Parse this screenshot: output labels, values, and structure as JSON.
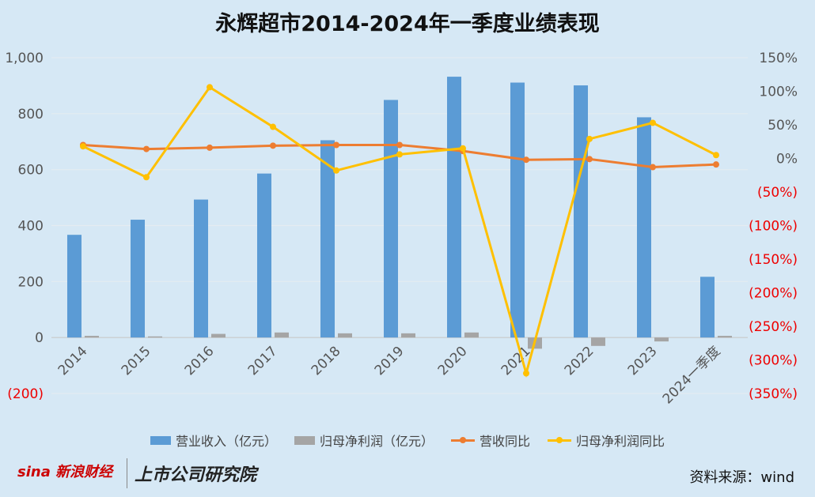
{
  "chart_data": {
    "type": "bar+line",
    "title": "永辉超市2014-2024年一季度业绩表现",
    "categories": [
      "2014",
      "2015",
      "2016",
      "2017",
      "2018",
      "2019",
      "2020",
      "2021",
      "2022",
      "2023",
      "2024一季度"
    ],
    "left_axis": {
      "ylim": [
        -200,
        1000
      ],
      "ticks": [
        "(200)",
        "0",
        "200",
        "400",
        "600",
        "800",
        "1,000"
      ],
      "tick_values": [
        -200,
        0,
        200,
        400,
        600,
        800,
        1000
      ]
    },
    "right_axis": {
      "ylim": [
        -350,
        150
      ],
      "ticks": [
        "150%",
        "100%",
        "50%",
        "0%",
        "(50%)",
        "(100%)",
        "(150%)",
        "(200%)",
        "(250%)",
        "(300%)",
        "(350%)"
      ],
      "tick_values": [
        150,
        100,
        50,
        0,
        -50,
        -100,
        -150,
        -200,
        -250,
        -300,
        -350
      ]
    },
    "series": [
      {
        "name": "营业收入（亿元）",
        "type": "bar",
        "axis": "left",
        "color": "#5b9bd5",
        "values": [
          367,
          421,
          493,
          586,
          705,
          849,
          932,
          911,
          901,
          787,
          217
        ]
      },
      {
        "name": "归母净利润（亿元）",
        "type": "bar",
        "axis": "left",
        "color": "#a5a5a5",
        "values": [
          6,
          4,
          13,
          18,
          15,
          15,
          18,
          -40,
          -30,
          -14,
          6
        ]
      },
      {
        "name": "营收同比",
        "type": "line",
        "axis": "right",
        "color": "#ed7d31",
        "values": [
          20,
          14,
          16,
          19,
          20,
          20,
          11,
          -2,
          -1,
          -13,
          -9
        ]
      },
      {
        "name": "归母净利润同比",
        "type": "line",
        "axis": "right",
        "color": "#ffc000",
        "values": [
          18,
          -28,
          106,
          47,
          -18,
          6,
          15,
          -320,
          29,
          53,
          5
        ]
      }
    ],
    "legend_position": "bottom",
    "grid": true
  },
  "source": "资料来源：wind",
  "logos": {
    "sina": "sina新浪财经",
    "research": "上市公司研究院"
  }
}
